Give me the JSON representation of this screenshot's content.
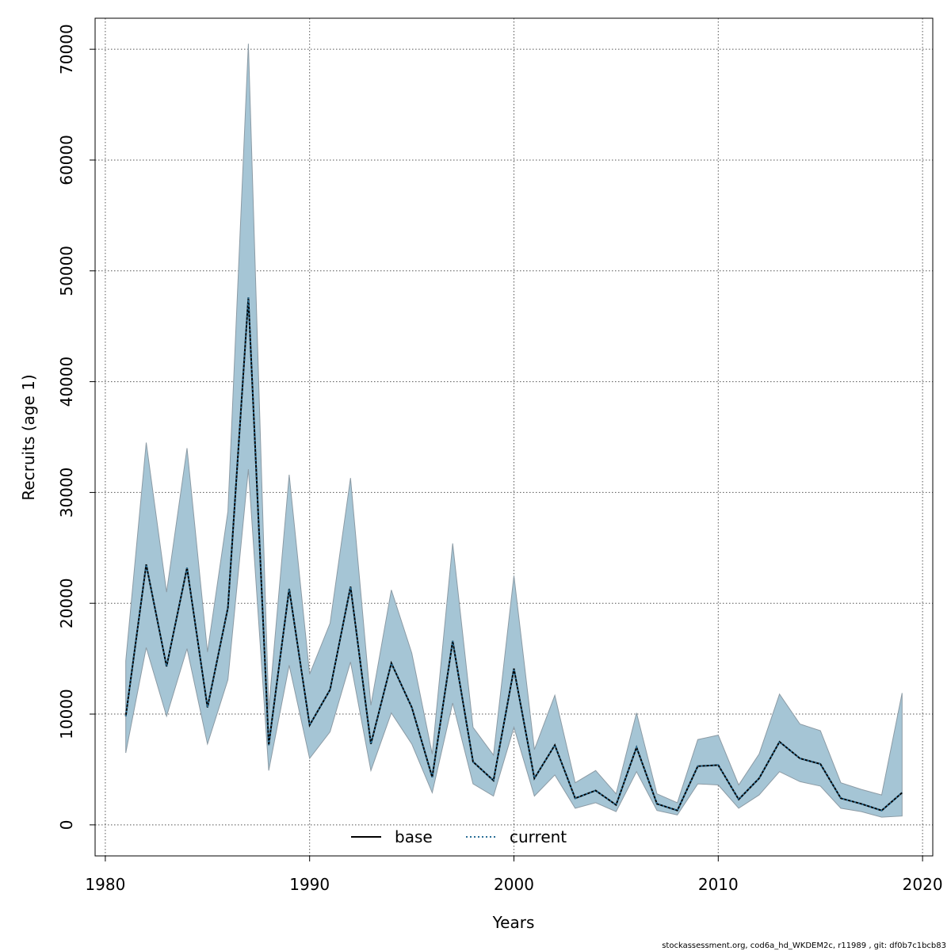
{
  "chart_data": {
    "type": "area",
    "xlabel": "Years",
    "ylabel": "Recruits (age 1)",
    "xlim": [
      1979.5,
      2020.5
    ],
    "ylim": [
      -2800,
      72800
    ],
    "xticks": [
      1980,
      1990,
      2000,
      2010,
      2020
    ],
    "yticks": [
      0,
      10000,
      20000,
      30000,
      40000,
      50000,
      60000,
      70000
    ],
    "grid": true,
    "legend_position": "bottom-center",
    "band_color": "#a5c5d5",
    "band_stroke": "#8c9ba5",
    "line_color": "#000000",
    "current_line_color": "#2a6f97",
    "x": [
      1981,
      1982,
      1983,
      1984,
      1985,
      1986,
      1987,
      1988,
      1989,
      1990,
      1991,
      1992,
      1993,
      1994,
      1995,
      1996,
      1997,
      1998,
      1999,
      2000,
      2001,
      2002,
      2003,
      2004,
      2005,
      2006,
      2007,
      2008,
      2009,
      2010,
      2011,
      2012,
      2013,
      2014,
      2015,
      2016,
      2017,
      2018,
      2019
    ],
    "series": [
      {
        "name": "base",
        "style": "solid",
        "values": [
          9800,
          23500,
          14300,
          23200,
          10600,
          19600,
          47600,
          7200,
          21300,
          9000,
          12200,
          21500,
          7300,
          14600,
          10600,
          4300,
          16600,
          5700,
          4000,
          14100,
          4200,
          7200,
          2400,
          3100,
          1800,
          7000,
          1900,
          1300,
          5300,
          5400,
          2300,
          4200,
          7500,
          6000,
          5500,
          2400,
          1900,
          1300,
          2900
        ]
      },
      {
        "name": "current",
        "style": "dotted",
        "values": [
          9800,
          23500,
          14300,
          23200,
          10600,
          19600,
          47600,
          7200,
          21300,
          9000,
          12200,
          21500,
          7300,
          14600,
          10600,
          4300,
          16600,
          5700,
          4000,
          14100,
          4200,
          7200,
          2400,
          3100,
          1800,
          7000,
          1900,
          1300,
          5300,
          5400,
          2300,
          4200,
          7500,
          6000,
          5500,
          2400,
          1900,
          1300,
          2900
        ]
      }
    ],
    "band_lower": [
      6500,
      16000,
      9800,
      15900,
      7300,
      13100,
      32100,
      4900,
      14400,
      6000,
      8400,
      14700,
      4900,
      10100,
      7300,
      2900,
      11000,
      3700,
      2600,
      8800,
      2600,
      4500,
      1500,
      2000,
      1200,
      4800,
      1300,
      900,
      3700,
      3600,
      1500,
      2700,
      4800,
      3900,
      3500,
      1500,
      1200,
      700,
      800
    ],
    "band_upper": [
      14800,
      34500,
      21000,
      34000,
      15600,
      28300,
      70500,
      10400,
      31600,
      13600,
      18200,
      31300,
      10800,
      21200,
      15500,
      6400,
      25400,
      8800,
      6300,
      22500,
      6800,
      11700,
      3800,
      4900,
      2800,
      10100,
      2800,
      2000,
      7700,
      8100,
      3600,
      6400,
      11800,
      9100,
      8500,
      3800,
      3200,
      2700,
      11900
    ]
  },
  "footer": {
    "credit": "stockassessment.org, cod6a_hd_WKDEM2c, r11989 , git: df0b7c1bcb83"
  }
}
